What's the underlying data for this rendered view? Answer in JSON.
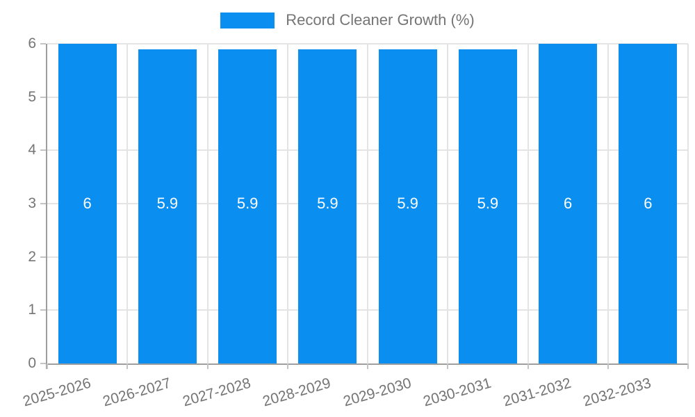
{
  "chart_data": {
    "type": "bar",
    "title": "Record Cleaner Growth (%)",
    "categories": [
      "2025-2026",
      "2026-2027",
      "2027-2028",
      "2028-2029",
      "2029-2030",
      "2030-2031",
      "2031-2032",
      "2032-2033"
    ],
    "values": [
      6,
      5.9,
      5.9,
      5.9,
      5.9,
      5.9,
      6,
      6
    ],
    "bar_labels": [
      "6",
      "5.9",
      "5.9",
      "5.9",
      "5.9",
      "5.9",
      "6",
      "6"
    ],
    "xlabel": "",
    "ylabel": "",
    "ylim": [
      0,
      6
    ],
    "yticks": [
      0,
      1,
      2,
      3,
      4,
      5,
      6
    ],
    "grid": true,
    "legend_position": "top-center",
    "x_label_rotation_deg": -16,
    "colors": {
      "bar": "#0a8ff0",
      "bar_value_text": "#ffffff",
      "axis_text": "#757575",
      "axis_line": "#9e9e9e",
      "gridline": "#e4e4e4",
      "tick": "#c4c4c4",
      "background": "#ffffff"
    }
  }
}
